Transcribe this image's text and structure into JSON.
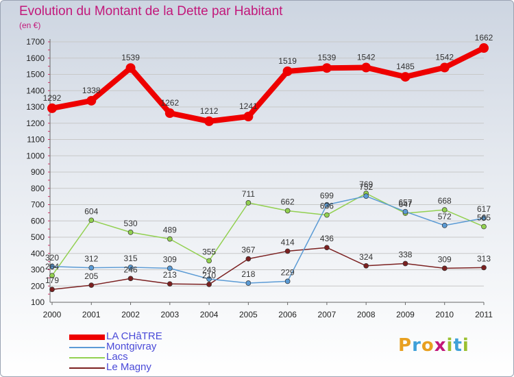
{
  "header": {
    "title": "Evolution du Montant de la Dette par Habitant",
    "subtitle": "(en €)"
  },
  "logo": {
    "text": "Proxiti",
    "colors": [
      "#e8a020",
      "#3fa0d8",
      "#e8a020",
      "#c2187a",
      "#9ac030",
      "#3fa0d8",
      "#9ac030"
    ]
  },
  "chart_data": {
    "type": "line",
    "title": "Evolution du Montant de la Dette par Habitant",
    "ylabel": "(en €)",
    "xlabel": "",
    "x": [
      "2000",
      "2001",
      "2002",
      "2003",
      "2004",
      "2005",
      "2006",
      "2007",
      "2008",
      "2009",
      "2010",
      "2011"
    ],
    "ylim": [
      100,
      1700
    ],
    "yticks": [
      "100",
      "200",
      "300",
      "400",
      "500",
      "600",
      "700",
      "800",
      "900",
      "1000",
      "1100",
      "1200",
      "1300",
      "1400",
      "1500",
      "1600",
      "1700"
    ],
    "grid": "horizontal",
    "legend": "bottom-left",
    "series": [
      {
        "name": "LA CHâTRE",
        "color": "#ee0000",
        "width": 8,
        "radius": 7,
        "values": [
          1292,
          1338,
          1539,
          1262,
          1212,
          1241,
          1519,
          1539,
          1542,
          1485,
          1542,
          1662
        ],
        "labels": [
          "1292",
          "1338",
          "1539",
          "1262",
          "1212",
          "1241",
          "1519",
          "1539",
          "1542",
          "1485",
          "1542",
          "1662"
        ]
      },
      {
        "name": "Montgivray",
        "color": "#5b9bd5",
        "width": 1.5,
        "radius": 3.5,
        "values": [
          320,
          312,
          315,
          309,
          243,
          218,
          229,
          699,
          752,
          657,
          572,
          617
        ],
        "labels": [
          "320",
          "312",
          "315",
          "309",
          "243",
          "218",
          "229",
          "699",
          "752",
          "657",
          "572",
          "617"
        ]
      },
      {
        "name": "Lacs",
        "color": "#92d050",
        "width": 1.5,
        "radius": 3.5,
        "values": [
          264,
          604,
          530,
          489,
          355,
          711,
          662,
          636,
          769,
          647,
          668,
          565
        ],
        "labels": [
          "264",
          "604",
          "530",
          "489",
          "355",
          "711",
          "662",
          "636",
          "769",
          "647",
          "668",
          "565"
        ]
      },
      {
        "name": "Le Magny",
        "color": "#7b2020",
        "width": 1.5,
        "radius": 3.5,
        "values": [
          179,
          205,
          246,
          213,
          210,
          367,
          414,
          436,
          324,
          338,
          309,
          313
        ],
        "labels": [
          "179",
          "205",
          "246",
          "213",
          "210",
          "367",
          "414",
          "436",
          "324",
          "338",
          "309",
          "313"
        ]
      }
    ]
  }
}
